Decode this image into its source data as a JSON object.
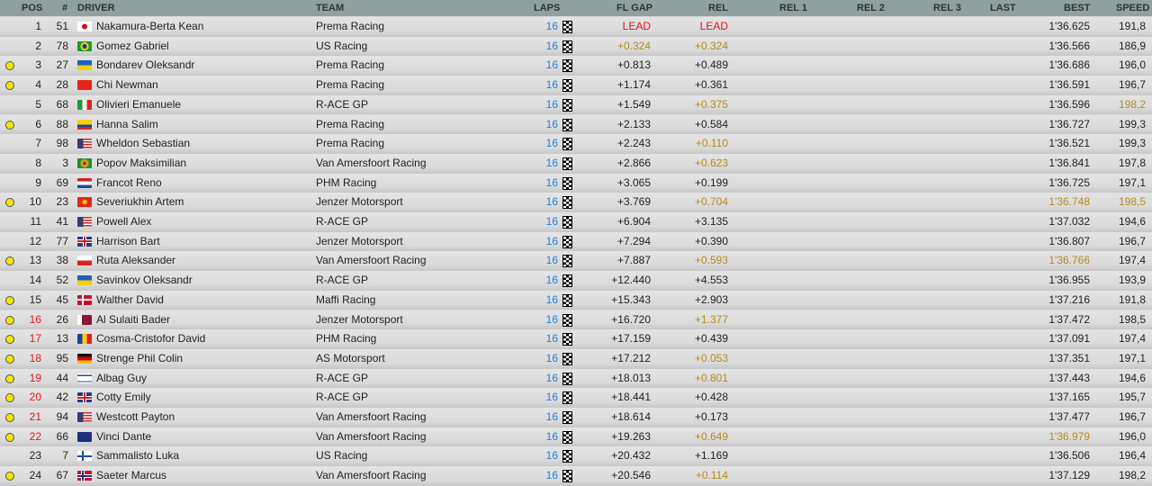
{
  "headers": {
    "pos": "POS",
    "num": "#",
    "driver": "DRIVER",
    "team": "TEAM",
    "laps": "LAPS",
    "flgap": "FL GAP",
    "rel": "REL",
    "rel1": "REL 1",
    "rel2": "REL 2",
    "rel3": "REL 3",
    "last": "LAST",
    "best": "BEST",
    "speed": "SPEED"
  },
  "colors": {
    "header_bg": "#8fa0a0",
    "laps": "#1e7fe0",
    "red": "#e8141a",
    "gold": "#b58a1e",
    "flag_dot": "#f2e600"
  },
  "rows": [
    {
      "pos": "1",
      "num": "51",
      "flag": "JP",
      "driver": "Nakamura-Berta Kean",
      "team": "Prema Racing",
      "laps": "16",
      "gap": "LEAD",
      "rel": "LEAD",
      "best": "1'36.625",
      "speed": "191,8",
      "dot": false,
      "gapc": "red",
      "relc": "red"
    },
    {
      "pos": "2",
      "num": "78",
      "flag": "BR",
      "driver": "Gomez Gabriel",
      "team": "US Racing",
      "laps": "16",
      "gap": "+0.324",
      "rel": "+0.324",
      "best": "1'36.566",
      "speed": "186,9",
      "dot": false,
      "gapc": "gold",
      "relc": "gold"
    },
    {
      "pos": "3",
      "num": "27",
      "flag": "UA",
      "driver": "Bondarev Oleksandr",
      "team": "Prema Racing",
      "laps": "16",
      "gap": "+0.813",
      "rel": "+0.489",
      "best": "1'36.686",
      "speed": "196,0",
      "dot": true
    },
    {
      "pos": "4",
      "num": "28",
      "flag": "CN",
      "driver": "Chi Newman",
      "team": "Prema Racing",
      "laps": "16",
      "gap": "+1.174",
      "rel": "+0.361",
      "best": "1'36.591",
      "speed": "196,7",
      "dot": true
    },
    {
      "pos": "5",
      "num": "68",
      "flag": "IT",
      "driver": "Olivieri Emanuele",
      "team": "R-ACE GP",
      "laps": "16",
      "gap": "+1.549",
      "rel": "+0.375",
      "best": "1'36.596",
      "speed": "198,2",
      "dot": false,
      "relc": "gold",
      "speedc": "gold"
    },
    {
      "pos": "6",
      "num": "88",
      "flag": "CO",
      "driver": "Hanna Salim",
      "team": "Prema Racing",
      "laps": "16",
      "gap": "+2.133",
      "rel": "+0.584",
      "best": "1'36.727",
      "speed": "199,3",
      "dot": true
    },
    {
      "pos": "7",
      "num": "98",
      "flag": "US",
      "driver": "Wheldon Sebastian",
      "team": "Prema Racing",
      "laps": "16",
      "gap": "+2.243",
      "rel": "+0.110",
      "best": "1'36.521",
      "speed": "199,3",
      "dot": false,
      "relc": "gold"
    },
    {
      "pos": "8",
      "num": "3",
      "flag": "GD",
      "driver": "Popov Maksimilian",
      "team": "Van Amersfoort Racing",
      "laps": "16",
      "gap": "+2.866",
      "rel": "+0.623",
      "best": "1'36.841",
      "speed": "197,8",
      "dot": false,
      "relc": "gold"
    },
    {
      "pos": "9",
      "num": "69",
      "flag": "NL",
      "driver": "Francot Reno",
      "team": "PHM Racing",
      "laps": "16",
      "gap": "+3.065",
      "rel": "+0.199",
      "best": "1'36.725",
      "speed": "197,1",
      "dot": false
    },
    {
      "pos": "10",
      "num": "23",
      "flag": "KG",
      "driver": "Severiukhin Artem",
      "team": "Jenzer Motorsport",
      "laps": "16",
      "gap": "+3.769",
      "rel": "+0.704",
      "best": "1'36.748",
      "speed": "198,5",
      "dot": true,
      "relc": "gold",
      "bestc": "gold",
      "speedc": "gold"
    },
    {
      "pos": "11",
      "num": "41",
      "flag": "US",
      "driver": "Powell Alex",
      "team": "R-ACE GP",
      "laps": "16",
      "gap": "+6.904",
      "rel": "+3.135",
      "best": "1'37.032",
      "speed": "194,6",
      "dot": false
    },
    {
      "pos": "12",
      "num": "77",
      "flag": "GB",
      "driver": "Harrison Bart",
      "team": "Jenzer Motorsport",
      "laps": "16",
      "gap": "+7.294",
      "rel": "+0.390",
      "best": "1'36.807",
      "speed": "196,7",
      "dot": false
    },
    {
      "pos": "13",
      "num": "38",
      "flag": "PL",
      "driver": "Ruta Aleksander",
      "team": "Van Amersfoort Racing",
      "laps": "16",
      "gap": "+7.887",
      "rel": "+0.593",
      "best": "1'36.766",
      "speed": "197,4",
      "dot": true,
      "relc": "gold",
      "bestc": "gold"
    },
    {
      "pos": "14",
      "num": "52",
      "flag": "UA",
      "driver": "Savinkov Oleksandr",
      "team": "R-ACE GP",
      "laps": "16",
      "gap": "+12.440",
      "rel": "+4.553",
      "best": "1'36.955",
      "speed": "193,9",
      "dot": false
    },
    {
      "pos": "15",
      "num": "45",
      "flag": "DK",
      "driver": "Walther David",
      "team": "Maffi Racing",
      "laps": "16",
      "gap": "+15.343",
      "rel": "+2.903",
      "best": "1'37.216",
      "speed": "191,8",
      "dot": true
    },
    {
      "pos": "16",
      "num": "26",
      "flag": "QA",
      "driver": "Al Sulaiti Bader",
      "team": "Jenzer Motorsport",
      "laps": "16",
      "gap": "+16.720",
      "rel": "+1.377",
      "best": "1'37.472",
      "speed": "198,5",
      "dot": true,
      "posc": "red",
      "relc": "gold"
    },
    {
      "pos": "17",
      "num": "13",
      "flag": "RO",
      "driver": "Cosma-Cristofor David",
      "team": "PHM Racing",
      "laps": "16",
      "gap": "+17.159",
      "rel": "+0.439",
      "best": "1'37.091",
      "speed": "197,4",
      "dot": true,
      "posc": "red"
    },
    {
      "pos": "18",
      "num": "95",
      "flag": "DE",
      "driver": "Strenge Phil Colin",
      "team": "AS Motorsport",
      "laps": "16",
      "gap": "+17.212",
      "rel": "+0.053",
      "best": "1'37.351",
      "speed": "197,1",
      "dot": true,
      "posc": "red",
      "relc": "gold"
    },
    {
      "pos": "19",
      "num": "44",
      "flag": "IL",
      "driver": "Albag Guy",
      "team": "R-ACE GP",
      "laps": "16",
      "gap": "+18.013",
      "rel": "+0.801",
      "best": "1'37.443",
      "speed": "194,6",
      "dot": true,
      "posc": "red",
      "relc": "gold"
    },
    {
      "pos": "20",
      "num": "42",
      "flag": "GB",
      "driver": "Cotty Emily",
      "team": "R-ACE GP",
      "laps": "16",
      "gap": "+18.441",
      "rel": "+0.428",
      "best": "1'37.165",
      "speed": "195,7",
      "dot": true,
      "posc": "red"
    },
    {
      "pos": "21",
      "num": "94",
      "flag": "US",
      "driver": "Westcott Payton",
      "team": "Van Amersfoort Racing",
      "laps": "16",
      "gap": "+18.614",
      "rel": "+0.173",
      "best": "1'37.477",
      "speed": "196,7",
      "dot": true,
      "posc": "red"
    },
    {
      "pos": "22",
      "num": "66",
      "flag": "AU",
      "driver": "Vinci Dante",
      "team": "Van Amersfoort Racing",
      "laps": "16",
      "gap": "+19.263",
      "rel": "+0.649",
      "best": "1'36.979",
      "speed": "196,0",
      "dot": true,
      "posc": "red",
      "relc": "gold",
      "bestc": "gold"
    },
    {
      "pos": "23",
      "num": "7",
      "flag": "FI",
      "driver": "Sammalisto Luka",
      "team": "US Racing",
      "laps": "16",
      "gap": "+20.432",
      "rel": "+1.169",
      "best": "1'36.506",
      "speed": "196,4",
      "dot": false
    },
    {
      "pos": "24",
      "num": "67",
      "flag": "NO",
      "driver": "Saeter Marcus",
      "team": "Van Amersfoort Racing",
      "laps": "16",
      "gap": "+20.546",
      "rel": "+0.114",
      "best": "1'37.129",
      "speed": "198,2",
      "dot": true,
      "relc": "gold"
    }
  ]
}
